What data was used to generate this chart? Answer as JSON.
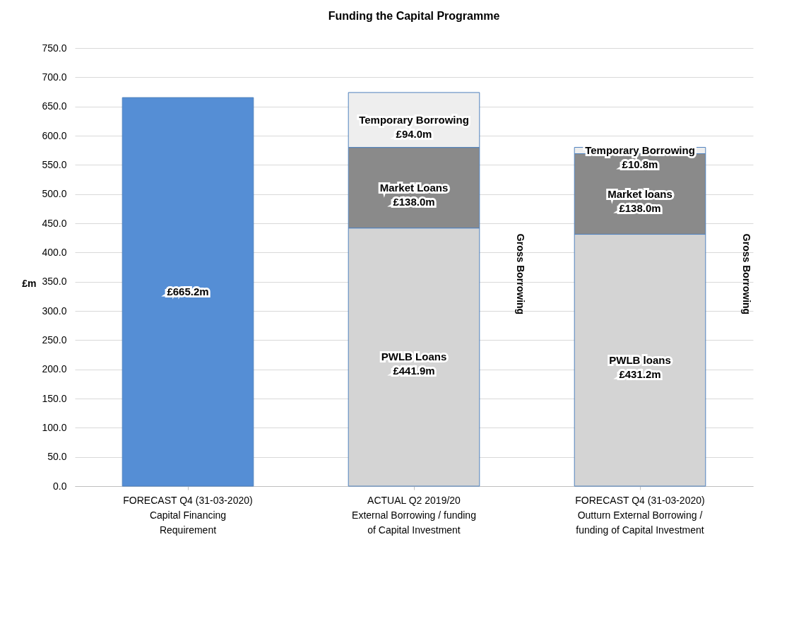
{
  "chart_data": {
    "type": "bar",
    "title": "Funding the Capital Programme",
    "ylabel": "£m",
    "categories": [
      "FORECAST Q4 (31-03-2020)\nCapital Financing\nRequirement",
      "ACTUAL Q2 2019/20\nExternal Borrowing / funding\nof Capital Investment",
      "FORECAST Q4 (31-03-2020)\nOutturn External Borrowing /\nfunding of Capital Investment"
    ],
    "stacked": true,
    "series": [
      {
        "color": "#558ed5",
        "values": [
          665.2,
          null,
          null
        ],
        "value_labels": [
          "£665.2m",
          null,
          null
        ]
      },
      {
        "color": "#d4d4d4",
        "values": [
          null,
          441.9,
          431.2
        ],
        "value_labels": [
          null,
          "PWLB Loans\n£441.9m",
          "PWLB loans\n£431.2m"
        ]
      },
      {
        "color": "#8a8a8a",
        "values": [
          null,
          138.0,
          138.0
        ],
        "value_labels": [
          null,
          "Market Loans\n£138.0m",
          "Market loans\n£138.0m"
        ]
      },
      {
        "color": "#eeeeee",
        "values": [
          null,
          94.0,
          10.8
        ],
        "value_labels": [
          null,
          "Temporary Borrowing\n£94.0m",
          "Temporary Borrowing\n£10.8m"
        ]
      }
    ],
    "ylim": [
      0,
      750
    ],
    "yticks": [
      {
        "value": 0,
        "label": "0.0"
      },
      {
        "value": 50,
        "label": "50.0"
      },
      {
        "value": 100,
        "label": "100.0"
      },
      {
        "value": 150,
        "label": "150.0"
      },
      {
        "value": 200,
        "label": "200.0"
      },
      {
        "value": 250,
        "label": "250.0"
      },
      {
        "value": 300,
        "label": "300.0"
      },
      {
        "value": 350,
        "label": "350.0"
      },
      {
        "value": 400,
        "label": "400.0"
      },
      {
        "value": 450,
        "label": "450.0"
      },
      {
        "value": 500,
        "label": "500.0"
      },
      {
        "value": 550,
        "label": "550.0"
      },
      {
        "value": 600,
        "label": "600.0"
      },
      {
        "value": 650,
        "label": "650.0"
      },
      {
        "value": 700,
        "label": "700.0"
      },
      {
        "value": 750,
        "label": "750.0"
      }
    ],
    "grid": "y",
    "legend": false,
    "annotations": [
      "Gross Borrowing",
      "Gross Borrowing"
    ]
  }
}
